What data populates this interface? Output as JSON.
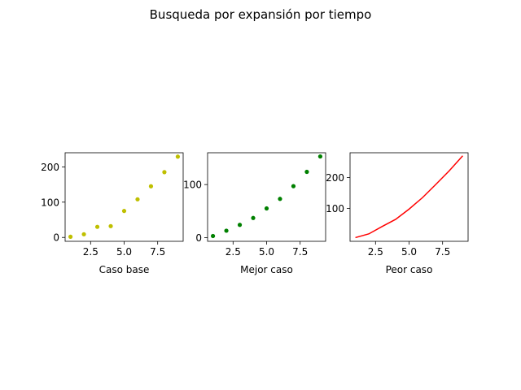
{
  "figure": {
    "suptitle": "Busqueda por expansión por tiempo"
  },
  "chart_data": [
    {
      "type": "scatter",
      "xlabel": "Caso base",
      "color": "#bfbf00",
      "xlim": [
        0.6,
        9.4
      ],
      "ylim": [
        -11,
        240
      ],
      "x_ticks": [
        2.5,
        5.0,
        7.5
      ],
      "x_tick_labels": [
        "2.5",
        "5.0",
        "7.5"
      ],
      "y_ticks": [
        0,
        100,
        200
      ],
      "y_tick_labels": [
        "0",
        "100",
        "200"
      ],
      "x": [
        1,
        2,
        3,
        4,
        5,
        6,
        7,
        8,
        9
      ],
      "y": [
        2,
        9,
        30,
        32,
        75,
        108,
        145,
        185,
        229
      ]
    },
    {
      "type": "scatter",
      "xlabel": "Mejor caso",
      "color": "#008000",
      "xlim": [
        0.6,
        9.4
      ],
      "ylim": [
        -7,
        160
      ],
      "x_ticks": [
        2.5,
        5.0,
        7.5
      ],
      "x_tick_labels": [
        "2.5",
        "5.0",
        "7.5"
      ],
      "y_ticks": [
        0,
        100
      ],
      "y_tick_labels": [
        "0",
        "100"
      ],
      "x": [
        1,
        2,
        3,
        4,
        5,
        6,
        7,
        8,
        9
      ],
      "y": [
        3,
        13,
        24,
        37,
        55,
        73,
        97,
        124,
        153
      ]
    },
    {
      "type": "line",
      "xlabel": "Peor caso",
      "color": "#ff0000",
      "xlim": [
        0.6,
        9.4
      ],
      "ylim": [
        -6,
        280
      ],
      "x_ticks": [
        2.5,
        5.0,
        7.5
      ],
      "x_tick_labels": [
        "2.5",
        "5.0",
        "7.5"
      ],
      "y_ticks": [
        100,
        200
      ],
      "y_tick_labels": [
        "100",
        "200"
      ],
      "x": [
        1,
        2,
        3,
        4,
        5,
        6,
        7,
        8,
        9
      ],
      "y": [
        6,
        18,
        42,
        65,
        98,
        135,
        178,
        222,
        270
      ]
    }
  ]
}
